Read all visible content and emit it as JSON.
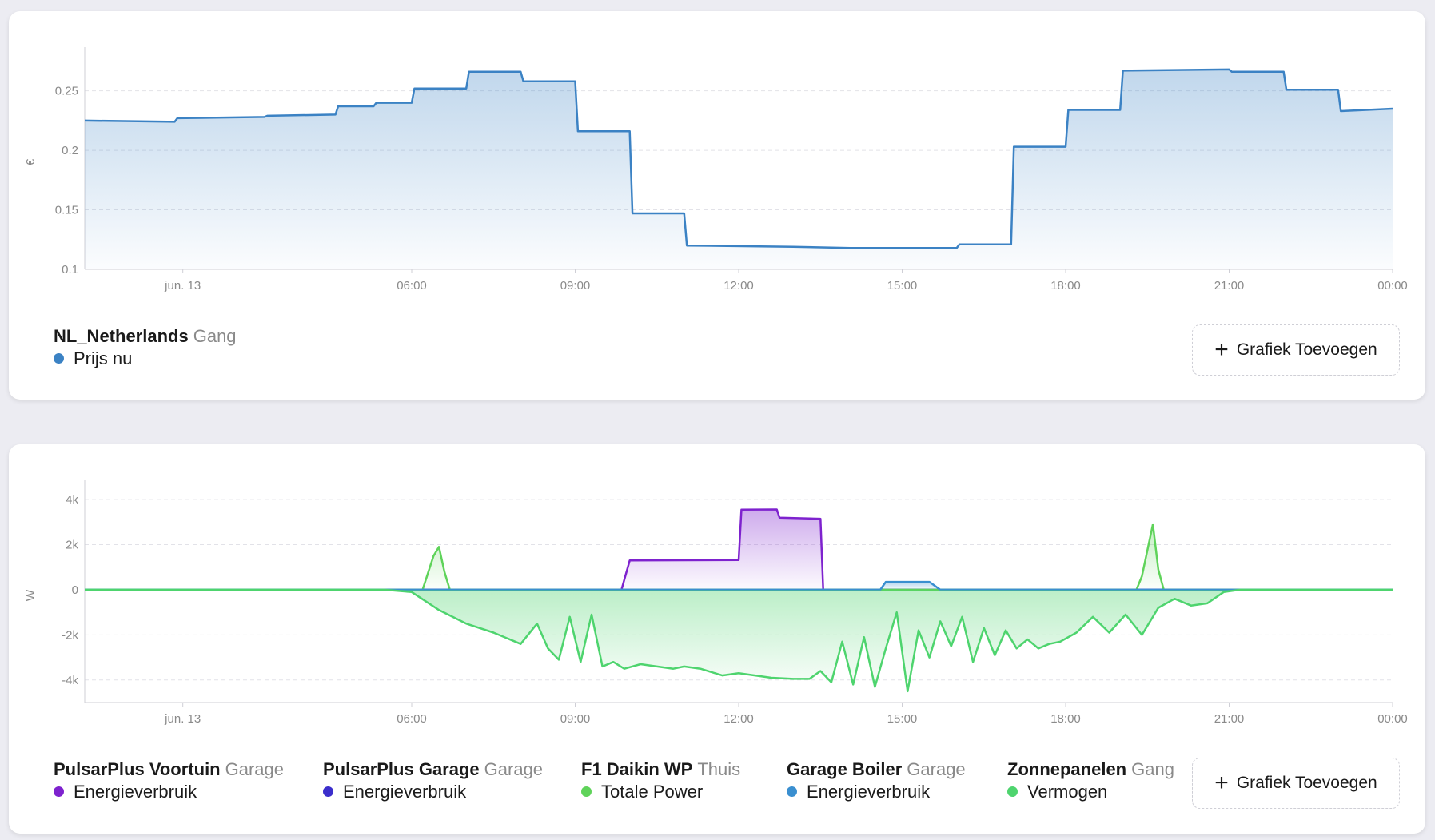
{
  "colors": {
    "price": "#3b82c4",
    "voortuin": "#7e22ce",
    "garage": "#3b2ecc",
    "daikin": "#5fd35a",
    "boiler": "#3a8fd0",
    "zon": "#4ed46e"
  },
  "add_graph_label": "Grafiek Toevoegen",
  "chart_data": [
    {
      "type": "area",
      "ylabel": "€",
      "ylim": [
        0.1,
        0.28
      ],
      "y_ticks": [
        "0.1",
        "0.15",
        "0.2",
        "0.25"
      ],
      "x_ticks": [
        "jun. 13",
        "06:00",
        "09:00",
        "12:00",
        "15:00",
        "18:00",
        "21:00",
        "00:00"
      ],
      "series": [
        {
          "name": "Prijs nu",
          "x": [
            0,
            1.65,
            1.7,
            3.3,
            3.35,
            4.6,
            4.65,
            5.3,
            5.35,
            6.0,
            6.05,
            7.0,
            7.05,
            8.0,
            8.05,
            9.0,
            9.05,
            10.0,
            10.05,
            11.0,
            11.05,
            13.0,
            14.05,
            15.0,
            16.0,
            16.05,
            17.0,
            17.05,
            18.0,
            18.05,
            19.0,
            19.05,
            21.0,
            21.05,
            22.0,
            22.05,
            23.0,
            23.05,
            24.0
          ],
          "values": [
            0.225,
            0.224,
            0.227,
            0.228,
            0.229,
            0.23,
            0.237,
            0.237,
            0.24,
            0.24,
            0.252,
            0.252,
            0.266,
            0.266,
            0.258,
            0.258,
            0.216,
            0.216,
            0.147,
            0.147,
            0.12,
            0.119,
            0.118,
            0.118,
            0.118,
            0.121,
            0.121,
            0.203,
            0.203,
            0.234,
            0.234,
            0.267,
            0.268,
            0.266,
            0.266,
            0.251,
            0.251,
            0.233,
            0.235
          ]
        }
      ],
      "legend": [
        {
          "entity": "NL_Netherlands",
          "area": "Gang",
          "items": [
            {
              "label": "Prijs nu",
              "color_key": "price"
            }
          ]
        }
      ]
    },
    {
      "type": "area",
      "ylabel": "W",
      "ylim": [
        -5000,
        4500
      ],
      "y_ticks": [
        "-4k",
        "-2k",
        "0",
        "2k",
        "4k"
      ],
      "y_tick_values": [
        -4000,
        -2000,
        0,
        2000,
        4000
      ],
      "x_ticks": [
        "jun. 13",
        "06:00",
        "09:00",
        "12:00",
        "15:00",
        "18:00",
        "21:00",
        "00:00"
      ],
      "series": [
        {
          "name": "Energieverbruik",
          "color_key": "voortuin",
          "x": [
            0,
            9.85,
            10.0,
            12.0,
            12.05,
            12.7,
            12.75,
            13.5,
            13.55,
            24.0
          ],
          "values": [
            0,
            0,
            1300,
            1320,
            3550,
            3560,
            3200,
            3150,
            0,
            0
          ]
        },
        {
          "name": "Energieverbruik",
          "color_key": "garage",
          "x": [
            0,
            24.0
          ],
          "values": [
            0,
            0
          ]
        },
        {
          "name": "Totale Power",
          "color_key": "daikin",
          "x": [
            0,
            6.2,
            6.4,
            6.5,
            6.6,
            6.7,
            19.3,
            19.4,
            19.6,
            19.7,
            19.8,
            24.0
          ],
          "values": [
            0,
            0,
            1500,
            1900,
            800,
            0,
            0,
            600,
            2900,
            900,
            0,
            0
          ]
        },
        {
          "name": "Energieverbruik",
          "color_key": "boiler",
          "x": [
            0,
            14.6,
            14.7,
            15.5,
            15.7,
            24.0
          ],
          "values": [
            0,
            0,
            350,
            350,
            0,
            0
          ]
        },
        {
          "name": "Vermogen",
          "color_key": "zon",
          "x": [
            0,
            5.5,
            6.0,
            6.5,
            7.0,
            7.5,
            8.0,
            8.3,
            8.5,
            8.7,
            8.9,
            9.1,
            9.3,
            9.5,
            9.7,
            9.9,
            10.2,
            10.5,
            10.8,
            11.0,
            11.3,
            11.7,
            12.0,
            12.3,
            12.6,
            13.0,
            13.3,
            13.5,
            13.7,
            13.9,
            14.1,
            14.3,
            14.5,
            14.7,
            14.9,
            15.1,
            15.3,
            15.5,
            15.7,
            15.9,
            16.1,
            16.3,
            16.5,
            16.7,
            16.9,
            17.1,
            17.3,
            17.5,
            17.7,
            17.9,
            18.2,
            18.5,
            18.8,
            19.1,
            19.4,
            19.7,
            20.0,
            20.3,
            20.6,
            20.9,
            21.2,
            21.5,
            22.0,
            24.0
          ],
          "values": [
            0,
            0,
            -100,
            -900,
            -1500,
            -1900,
            -2400,
            -1500,
            -2600,
            -3100,
            -1200,
            -3200,
            -1100,
            -3400,
            -3200,
            -3500,
            -3300,
            -3400,
            -3500,
            -3400,
            -3500,
            -3800,
            -3700,
            -3800,
            -3900,
            -3950,
            -3950,
            -3600,
            -4100,
            -2300,
            -4200,
            -2100,
            -4300,
            -2600,
            -1000,
            -4500,
            -1800,
            -3000,
            -1400,
            -2500,
            -1200,
            -3200,
            -1700,
            -2900,
            -1800,
            -2600,
            -2200,
            -2600,
            -2400,
            -2300,
            -1900,
            -1200,
            -1900,
            -1100,
            -2000,
            -800,
            -400,
            -700,
            -600,
            -100,
            0,
            0,
            0,
            0
          ]
        }
      ],
      "legend": [
        {
          "entity": "PulsarPlus Voortuin",
          "area": "Garage",
          "items": [
            {
              "label": "Energieverbruik",
              "color_key": "voortuin"
            }
          ]
        },
        {
          "entity": "PulsarPlus Garage",
          "area": "Garage",
          "items": [
            {
              "label": "Energieverbruik",
              "color_key": "garage"
            }
          ]
        },
        {
          "entity": "F1 Daikin WP",
          "area": "Thuis",
          "items": [
            {
              "label": "Totale Power",
              "color_key": "daikin"
            }
          ]
        },
        {
          "entity": "Garage Boiler",
          "area": "Garage",
          "items": [
            {
              "label": "Energieverbruik",
              "color_key": "boiler"
            }
          ]
        },
        {
          "entity": "Zonnepanelen",
          "area": "Gang",
          "items": [
            {
              "label": "Vermogen",
              "color_key": "zon"
            }
          ]
        }
      ]
    }
  ]
}
